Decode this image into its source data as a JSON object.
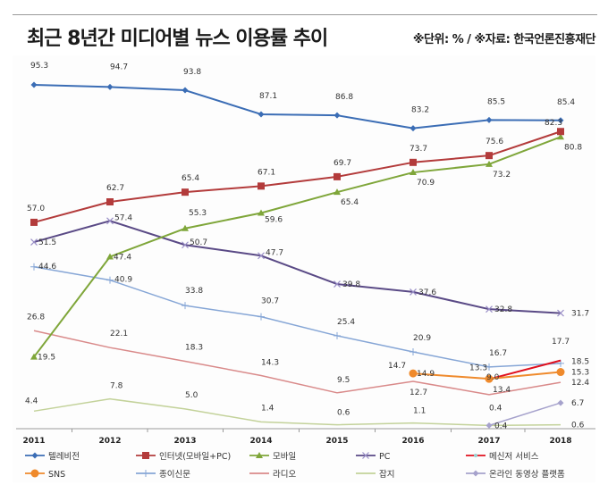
{
  "header": {
    "title": "최근 8년간 미디어별 뉴스 이용률 추이",
    "source": "※단위: % / ※자료: 한국언론진흥재단"
  },
  "chart_data": {
    "type": "line",
    "title": "최근 8년간 미디어별 뉴스 이용률 추이",
    "unit": "%",
    "source": "한국언론진흥재단",
    "xlabel": "",
    "ylabel": "",
    "ylim": [
      0,
      100
    ],
    "grid": false,
    "legend": "bottom",
    "categories": [
      "2011",
      "2012",
      "2013",
      "2014",
      "2015",
      "2016",
      "2017",
      "2018"
    ],
    "series": [
      {
        "name": "텔레비전",
        "color": "#3b6db5",
        "marker": "diamond",
        "values": [
          95.3,
          94.7,
          93.8,
          87.1,
          86.8,
          83.2,
          85.5,
          85.4
        ]
      },
      {
        "name": "인터넷(모바일+PC)",
        "color": "#b33b3b",
        "marker": "square",
        "values": [
          57.0,
          62.7,
          65.4,
          67.1,
          69.7,
          73.7,
          75.6,
          82.3
        ]
      },
      {
        "name": "모바일",
        "color": "#7fa63a",
        "marker": "triangle",
        "values": [
          19.5,
          47.4,
          55.3,
          59.6,
          65.4,
          70.9,
          73.2,
          80.8
        ]
      },
      {
        "name": "PC",
        "color": "#5a4a86",
        "marker": "x",
        "values": [
          51.5,
          57.4,
          50.7,
          47.7,
          39.8,
          37.6,
          32.8,
          31.7
        ]
      },
      {
        "name": "메신저 서비스",
        "color": "#e0101e",
        "marker": "none",
        "values": [
          null,
          null,
          null,
          null,
          null,
          14.7,
          13.3,
          18.5
        ]
      },
      {
        "name": "SNS",
        "color": "#ef8a2c",
        "marker": "circle",
        "values": [
          null,
          null,
          null,
          null,
          null,
          14.9,
          13.4,
          15.3
        ]
      },
      {
        "name": "종이신문",
        "color": "#86a6d6",
        "marker": "plus",
        "values": [
          44.6,
          40.9,
          33.8,
          30.7,
          25.4,
          20.9,
          16.7,
          17.7
        ]
      },
      {
        "name": "라디오",
        "color": "#d98a8a",
        "marker": "none",
        "values": [
          26.8,
          22.1,
          18.3,
          14.3,
          9.5,
          12.7,
          9.0,
          12.4
        ]
      },
      {
        "name": "잡지",
        "color": "#c3d29a",
        "marker": "none",
        "values": [
          4.4,
          7.8,
          5.0,
          1.4,
          0.6,
          1.1,
          0.4,
          0.6
        ]
      },
      {
        "name": "온라인 동영상 플랫폼",
        "color": "#a6a2cc",
        "marker": "diamond",
        "values": [
          null,
          null,
          null,
          null,
          null,
          null,
          0.4,
          6.7
        ]
      }
    ],
    "data_labels": [
      {
        "series": 0,
        "labels": [
          "95.3",
          "94.7",
          "93.8",
          "87.1",
          "86.8",
          "83.2",
          "85.5",
          "85.4"
        ]
      },
      {
        "series": 1,
        "labels": [
          "57.0",
          "62.7",
          "65.4",
          "67.1",
          "69.7",
          "73.7",
          "75.6",
          "82.3"
        ]
      },
      {
        "series": 2,
        "labels": [
          "19.5",
          "47.4",
          "55.3",
          "59.6",
          "65.4",
          "70.9",
          "73.2",
          "80.8"
        ]
      },
      {
        "series": 3,
        "labels": [
          "51.5",
          "57.4",
          "50.7",
          "47.7",
          "39.8",
          "37.6",
          "32.8",
          "31.7"
        ]
      },
      {
        "series": 4,
        "labels": [
          null,
          null,
          null,
          null,
          null,
          "14.7",
          "13.3",
          "18.5"
        ]
      },
      {
        "series": 5,
        "labels": [
          null,
          null,
          null,
          null,
          null,
          "14.9",
          "13.4",
          "15.3"
        ]
      },
      {
        "series": 6,
        "labels": [
          "44.6",
          "40.9",
          "33.8",
          "30.7",
          "25.4",
          "20.9",
          "16.7",
          "17.7"
        ]
      },
      {
        "series": 7,
        "labels": [
          "26.8",
          "22.1",
          "18.3",
          "14.3",
          "9.5",
          "12.7",
          "9.0",
          "12.4"
        ]
      },
      {
        "series": 8,
        "labels": [
          "4.4",
          "7.8",
          "5.0",
          "1.4",
          "0.6",
          "1.1",
          "0.4",
          "0.6"
        ]
      },
      {
        "series": 9,
        "labels": [
          null,
          null,
          null,
          null,
          null,
          null,
          "0.4",
          "6.7"
        ]
      }
    ]
  }
}
